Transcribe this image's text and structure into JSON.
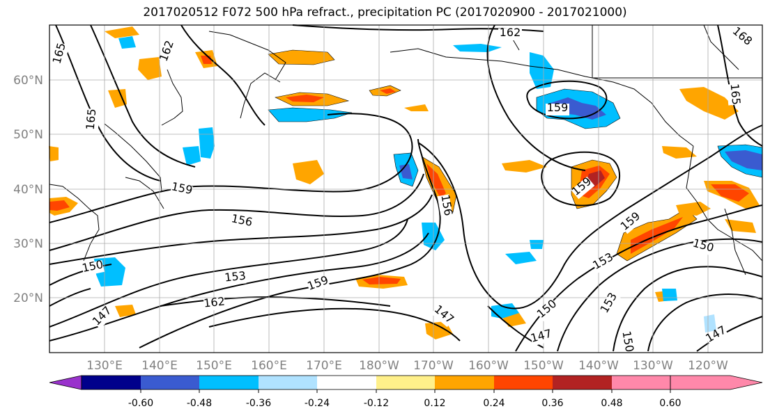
{
  "title": "2017020512 F072 500 hPa refract., precipitation PC (2017020900 - 2017021000)",
  "map": {
    "lat_labels": [
      "20°N",
      "30°N",
      "40°N",
      "50°N",
      "60°N"
    ],
    "lon_labels": [
      "130°E",
      "140°E",
      "150°E",
      "160°E",
      "170°E",
      "180°W",
      "170°W",
      "160°W",
      "150°W",
      "140°W",
      "130°W",
      "120°W"
    ],
    "contour_labels": [
      "165",
      "162",
      "165",
      "159",
      "156",
      "150",
      "153",
      "162",
      "147",
      "159",
      "156",
      "162",
      "165",
      "168",
      "159",
      "159",
      "159",
      "153",
      "150",
      "147",
      "150",
      "153",
      "150",
      "147",
      "147"
    ]
  },
  "colorbar": {
    "colors": [
      "#9932cc",
      "#00008b",
      "#3a5bd0",
      "#00bfff",
      "#b0e2ff",
      "#ffffff",
      "#fff08a",
      "#ffa500",
      "#ff4500",
      "#b22222",
      "#ff88aa"
    ],
    "tick_labels": [
      "-0.60",
      "-0.48",
      "-0.36",
      "-0.24",
      "-0.12",
      "0.12",
      "0.24",
      "0.36",
      "0.48",
      "0.60"
    ]
  }
}
